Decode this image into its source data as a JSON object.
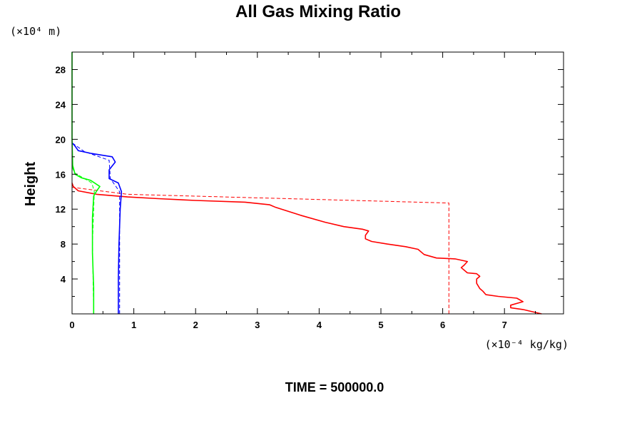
{
  "chart_data": {
    "type": "line",
    "title": "All Gas Mixing Ratio",
    "ylabel": "Height",
    "y_unit": "(×10⁴ m)",
    "x_unit": "(×10⁻⁴ kg/kg)",
    "footer": "TIME = 500000.0",
    "xlim": [
      0,
      8
    ],
    "ylim": [
      0,
      30
    ],
    "x_ticks": [
      "0",
      "1",
      "2",
      "3",
      "4",
      "5",
      "6",
      "7"
    ],
    "y_ticks": [
      "4",
      "8",
      "12",
      "16",
      "20",
      "24",
      "28"
    ],
    "grid": false,
    "legend": "none",
    "series": [
      {
        "color": "#ff0000",
        "dash": false,
        "points": [
          [
            7.6,
            0
          ],
          [
            7.3,
            0.5
          ],
          [
            7.1,
            0.7
          ],
          [
            7.1,
            1.0
          ],
          [
            7.3,
            1.4
          ],
          [
            7.2,
            1.8
          ],
          [
            6.9,
            2.0
          ],
          [
            6.7,
            2.2
          ],
          [
            6.65,
            2.6
          ],
          [
            6.6,
            2.9
          ],
          [
            6.55,
            3.5
          ],
          [
            6.55,
            4.0
          ],
          [
            6.6,
            4.3
          ],
          [
            6.55,
            4.6
          ],
          [
            6.4,
            4.7
          ],
          [
            6.3,
            5.3
          ],
          [
            6.35,
            5.6
          ],
          [
            6.4,
            6.0
          ],
          [
            6.2,
            6.3
          ],
          [
            5.9,
            6.4
          ],
          [
            5.7,
            6.8
          ],
          [
            5.6,
            7.4
          ],
          [
            5.4,
            7.7
          ],
          [
            5.1,
            8.0
          ],
          [
            4.85,
            8.3
          ],
          [
            4.75,
            8.6
          ],
          [
            4.75,
            9.0
          ],
          [
            4.8,
            9.5
          ],
          [
            4.7,
            9.7
          ],
          [
            4.4,
            10.0
          ],
          [
            4.1,
            10.5
          ],
          [
            3.7,
            11.3
          ],
          [
            3.3,
            12.2
          ],
          [
            3.2,
            12.5
          ],
          [
            2.8,
            12.8
          ],
          [
            2.0,
            13.0
          ],
          [
            1.4,
            13.2
          ],
          [
            0.9,
            13.4
          ],
          [
            0.4,
            13.7
          ],
          [
            0.1,
            14.1
          ],
          [
            0.02,
            14.6
          ],
          [
            0,
            15
          ]
        ]
      },
      {
        "color": "#ff0000",
        "dash": true,
        "points": [
          [
            6.1,
            0
          ],
          [
            6.1,
            12.7
          ],
          [
            0.9,
            13.7
          ],
          [
            0,
            14.5
          ]
        ]
      },
      {
        "color": "#0000ff",
        "dash": false,
        "points": [
          [
            0.75,
            0
          ],
          [
            0.75,
            4
          ],
          [
            0.76,
            8
          ],
          [
            0.78,
            12
          ],
          [
            0.8,
            14
          ],
          [
            0.75,
            15
          ],
          [
            0.6,
            15.5
          ],
          [
            0.6,
            16.5
          ],
          [
            0.7,
            17.4
          ],
          [
            0.65,
            18
          ],
          [
            0.3,
            18.4
          ],
          [
            0.1,
            18.7
          ],
          [
            0.04,
            19.3
          ],
          [
            0,
            19.6
          ]
        ]
      },
      {
        "color": "#0000ff",
        "dash": true,
        "points": [
          [
            0.77,
            0
          ],
          [
            0.77,
            14
          ],
          [
            0.62,
            15.5
          ],
          [
            0.6,
            17.6
          ],
          [
            0.2,
            18.6
          ],
          [
            0,
            19.6
          ]
        ]
      },
      {
        "color": "#00ff00",
        "dash": false,
        "points": [
          [
            0.35,
            0
          ],
          [
            0.35,
            3
          ],
          [
            0.33,
            7
          ],
          [
            0.33,
            11
          ],
          [
            0.35,
            13.5
          ],
          [
            0.4,
            14.1
          ],
          [
            0.45,
            14.6
          ],
          [
            0.3,
            15.3
          ],
          [
            0.15,
            15.6
          ],
          [
            0.05,
            16
          ],
          [
            0.01,
            17
          ],
          [
            0,
            20
          ],
          [
            0,
            30
          ]
        ]
      },
      {
        "color": "#00ff00",
        "dash": true,
        "points": [
          [
            0.35,
            0
          ],
          [
            0.33,
            8
          ],
          [
            0.36,
            14
          ],
          [
            0.32,
            15
          ],
          [
            0.03,
            16.2
          ],
          [
            0,
            17
          ]
        ]
      }
    ]
  }
}
